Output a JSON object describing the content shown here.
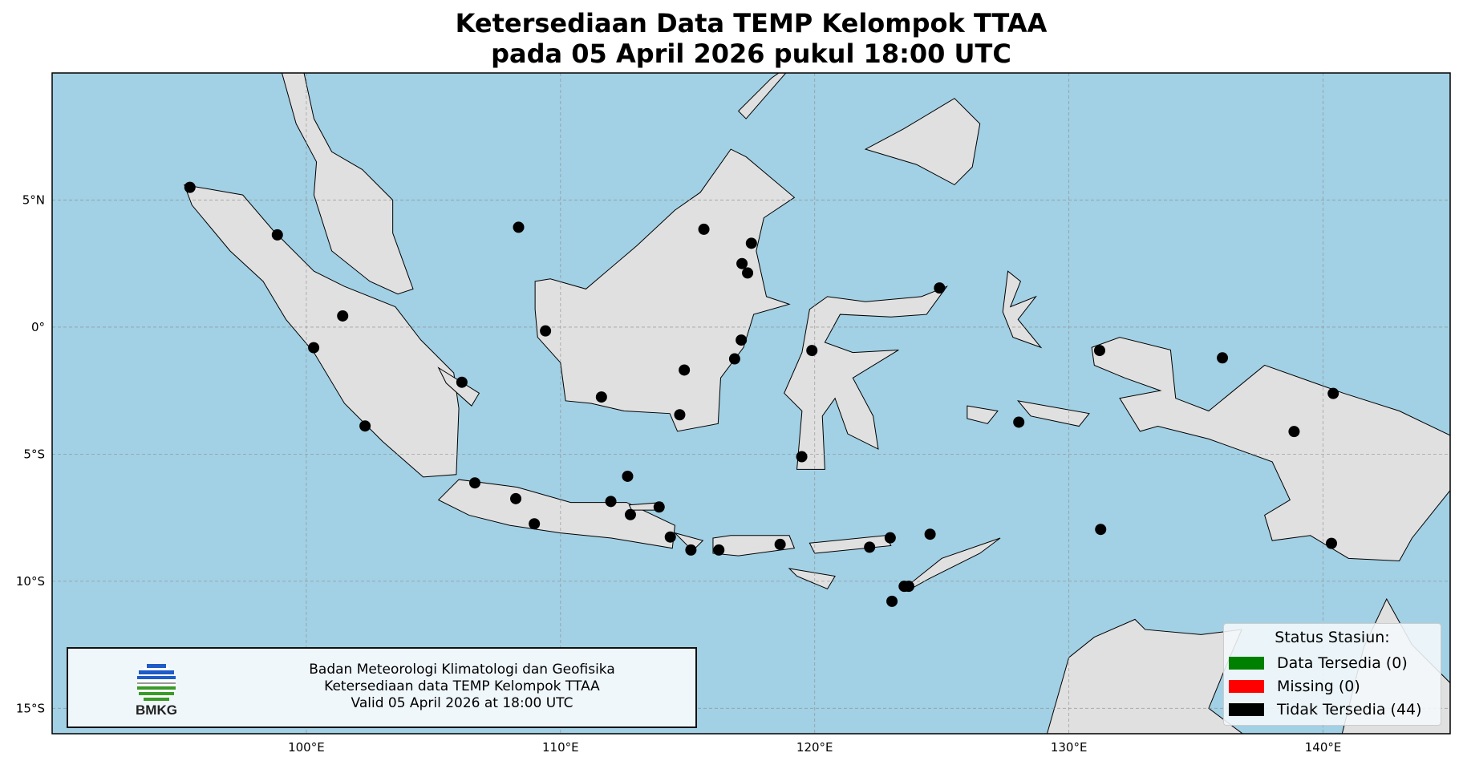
{
  "title": {
    "line1": "Ketersediaan Data TEMP Kelompok TTAA",
    "line2": "pada 05 April 2026 pukul 18:00 UTC"
  },
  "map": {
    "extent": {
      "lon": [
        90,
        145
      ],
      "lat": [
        -16,
        10
      ]
    },
    "colors": {
      "ocean": "#a2d0e4",
      "land": "#e0e0e0",
      "coast": "#000000",
      "grid": "#888888"
    },
    "lon_ticks": [
      {
        "value": 100,
        "label": "100°E"
      },
      {
        "value": 110,
        "label": "110°E"
      },
      {
        "value": 120,
        "label": "120°E"
      },
      {
        "value": 130,
        "label": "130°E"
      },
      {
        "value": 140,
        "label": "140°E"
      }
    ],
    "lat_ticks": [
      {
        "value": 5,
        "label": "5°N"
      },
      {
        "value": 0,
        "label": "0°"
      },
      {
        "value": -5,
        "label": "5°S"
      },
      {
        "value": -10,
        "label": "10°S"
      },
      {
        "value": -15,
        "label": "15°S"
      }
    ],
    "stations": [
      [
        95.42,
        5.5
      ],
      [
        98.86,
        3.63
      ],
      [
        101.43,
        0.44
      ],
      [
        100.29,
        -0.81
      ],
      [
        102.31,
        -3.89
      ],
      [
        106.12,
        -2.17
      ],
      [
        108.35,
        3.93
      ],
      [
        109.41,
        -0.15
      ],
      [
        111.61,
        -2.75
      ],
      [
        114.87,
        -1.69
      ],
      [
        114.69,
        -3.45
      ],
      [
        115.64,
        3.85
      ],
      [
        117.51,
        3.3
      ],
      [
        117.14,
        2.5
      ],
      [
        117.36,
        2.13
      ],
      [
        117.11,
        -0.51
      ],
      [
        116.85,
        -1.25
      ],
      [
        106.63,
        -6.13
      ],
      [
        108.24,
        -6.75
      ],
      [
        108.97,
        -7.74
      ],
      [
        112.64,
        -5.87
      ],
      [
        111.98,
        -6.86
      ],
      [
        112.75,
        -7.38
      ],
      [
        113.88,
        -7.08
      ],
      [
        114.32,
        -8.26
      ],
      [
        115.13,
        -8.77
      ],
      [
        116.23,
        -8.77
      ],
      [
        118.64,
        -8.55
      ],
      [
        122.16,
        -8.66
      ],
      [
        122.97,
        -8.29
      ],
      [
        124.54,
        -8.15
      ],
      [
        123.52,
        -10.2
      ],
      [
        123.7,
        -10.2
      ],
      [
        123.04,
        -10.79
      ],
      [
        119.49,
        -5.1
      ],
      [
        119.89,
        -0.92
      ],
      [
        124.91,
        1.54
      ],
      [
        128.03,
        -3.74
      ],
      [
        131.21,
        -0.92
      ],
      [
        136.04,
        -1.21
      ],
      [
        140.4,
        -2.61
      ],
      [
        138.86,
        -4.11
      ],
      [
        140.33,
        -8.51
      ],
      [
        131.25,
        -7.96
      ]
    ],
    "station_status": "Tidak Tersedia"
  },
  "info_box": {
    "logo_text": "BMKG",
    "line1": "Badan Meteorologi Klimatologi dan Geofisika",
    "line2": "Ketersediaan data TEMP Kelompok TTAA",
    "line3": "Valid 05 April 2026 at 18:00 UTC"
  },
  "legend": {
    "title": "Status Stasiun:",
    "items": [
      {
        "label": "Data Tersedia (0)",
        "color": "#008000"
      },
      {
        "label": "Missing (0)",
        "color": "#ff0000"
      },
      {
        "label": "Tidak Tersedia (44)",
        "color": "#000000"
      }
    ]
  }
}
